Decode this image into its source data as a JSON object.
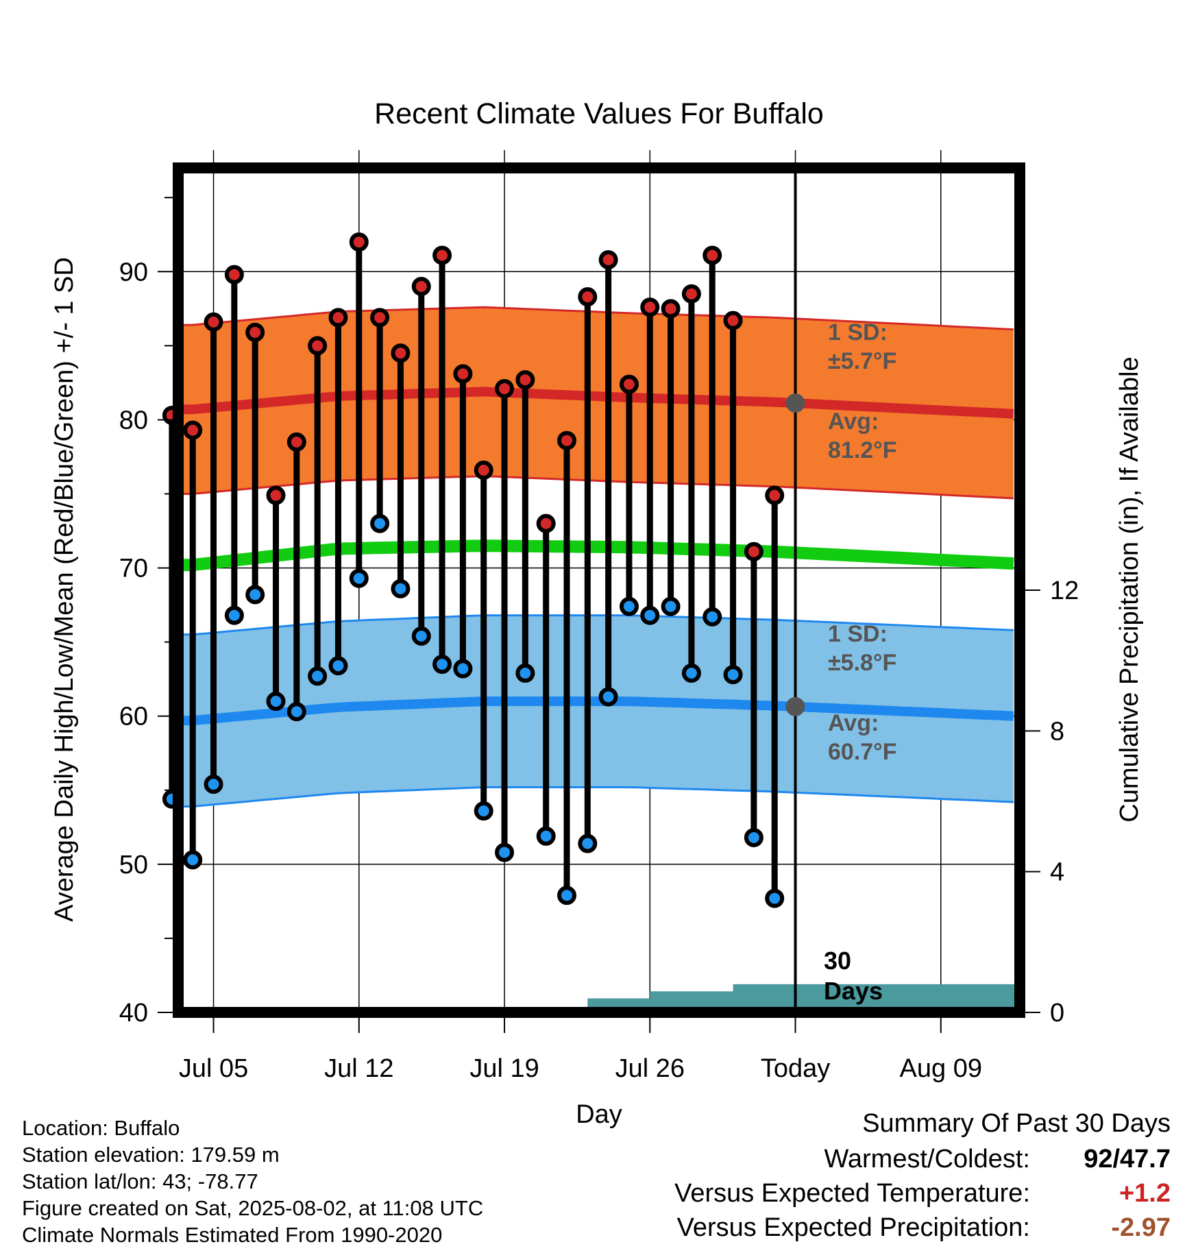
{
  "chart_data": {
    "type": "line",
    "title": "Recent Climate Values For Buffalo",
    "xlabel": "Day",
    "ylabel": "Average Daily High/Low/Mean (Red/Blue/Green) +/- 1 SD",
    "ylabel_right": "Cumulative Precipitation (in), If Available",
    "ylim": [
      40,
      97
    ],
    "ylim_right": [
      0,
      24
    ],
    "yticks": [
      "40",
      "50",
      "60",
      "70",
      "80",
      "90"
    ],
    "yticks_right": [
      "0",
      "4",
      "8",
      "12"
    ],
    "x_range_days": [
      -29.7,
      10.8
    ],
    "xticks": [
      {
        "label": "Jul 05",
        "day": -28
      },
      {
        "label": "Jul 12",
        "day": -21
      },
      {
        "label": "Jul 19",
        "day": -14
      },
      {
        "label": "Jul 26",
        "day": -7
      },
      {
        "label": "Today",
        "day": 0
      },
      {
        "label": "Aug 09",
        "day": 7
      }
    ],
    "series": [
      {
        "name": "High",
        "color": "#cc2222",
        "values": [
          80.3,
          79.3,
          86.6,
          89.8,
          85.9,
          74.9,
          78.5,
          85.0,
          86.9,
          92.0,
          86.9,
          84.5,
          89.0,
          91.1,
          83.1,
          76.6,
          82.1,
          82.7,
          73.0,
          78.6,
          88.3,
          90.8,
          82.4,
          87.6,
          87.5,
          88.5,
          91.1,
          86.7,
          71.1,
          74.9
        ]
      },
      {
        "name": "Low",
        "color": "#2288ee",
        "values": [
          54.4,
          50.3,
          55.4,
          66.8,
          68.2,
          61.0,
          60.3,
          62.7,
          63.4,
          69.3,
          73.0,
          68.6,
          65.4,
          63.5,
          63.2,
          53.6,
          50.8,
          62.9,
          51.9,
          47.9,
          51.4,
          61.3,
          67.4,
          66.8,
          67.4,
          62.9,
          66.7,
          62.8,
          51.8,
          47.7
        ]
      }
    ],
    "normals": {
      "day": [
        -29,
        -22,
        -15,
        -8,
        -1,
        10.5
      ],
      "high_avg": [
        80.7,
        81.6,
        81.9,
        81.5,
        81.2,
        80.4
      ],
      "high_sd": 5.7,
      "low_avg": [
        59.7,
        60.6,
        61.0,
        61.0,
        60.7,
        60.0
      ],
      "low_sd": 5.8,
      "mean_avg": [
        70.2,
        71.3,
        71.5,
        71.4,
        71.1,
        70.3
      ]
    },
    "precip_cumulative": {
      "day": [
        -29.7,
        -21,
        -11,
        -10,
        -9,
        -7,
        -6,
        -4,
        -3,
        -2,
        -1,
        0,
        10.8
      ],
      "value": [
        0,
        0.1,
        0.1,
        0.4,
        0.4,
        0.6,
        0.6,
        0.6,
        0.8,
        0.8,
        0.8,
        0.8,
        0.8
      ]
    },
    "annotations": {
      "high_sd": "1 SD:",
      "high_sd_value": "±5.7°F",
      "high_avg": "Avg:",
      "high_avg_value": "81.2°F",
      "low_sd": "1 SD:",
      "low_sd_value": "±5.8°F",
      "low_avg": "Avg:",
      "low_avg_value": "60.7°F",
      "days_num": "30",
      "days_word": "Days"
    },
    "colors": {
      "high_band": "#f47b2e",
      "high_line": "#d42828",
      "low_band": "#82c1e7",
      "low_line": "#1e88ef",
      "mean_line": "#11cc11",
      "precip": "#4a9a9e",
      "high_marker": "#d42828",
      "low_marker": "#1e93ef",
      "avg_marker": "#555555"
    }
  },
  "info": {
    "location": "Location: Buffalo",
    "elevation": "Station elevation: 179.59 m",
    "latlon": "Station lat/lon: 43; -78.77",
    "created": "Figure created on Sat, 2025-08-02, at 11:08 UTC",
    "normals": "Climate Normals Estimated From 1990-2020"
  },
  "summary": {
    "title": "Summary Of Past 30 Days",
    "warmest_label": "Warmest/Coldest:",
    "warmest_value": "92/47.7",
    "temp_label": "Versus Expected Temperature:",
    "temp_value": "+1.2",
    "temp_color": "#cc2222",
    "precip_label": "Versus Expected Precipitation:",
    "precip_value": "-2.97",
    "precip_color": "#a0522d"
  }
}
